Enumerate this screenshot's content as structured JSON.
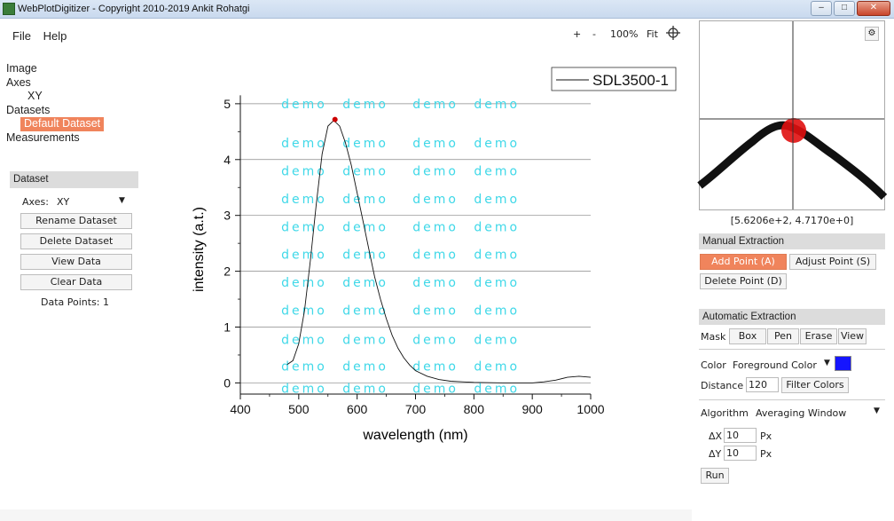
{
  "window": {
    "title": "WebPlotDigitizer - Copyright 2010-2019 Ankit Rohatgi",
    "min_label": "–",
    "max_label": "□",
    "close_label": "✕"
  },
  "menu": {
    "file": "File",
    "help": "Help"
  },
  "tree": {
    "image": "Image",
    "axes": "Axes",
    "axes_xy": "XY",
    "datasets": "Datasets",
    "default_dataset": "Default Dataset",
    "measurements": "Measurements"
  },
  "dataset_panel": {
    "header": "Dataset",
    "axes_label": "Axes:",
    "axes_value": "XY",
    "rename": "Rename Dataset",
    "delete": "Delete Dataset",
    "view": "View Data",
    "clear": "Clear Data",
    "data_points": "Data Points: 1"
  },
  "view_toolbar": {
    "zoom_in": "+",
    "zoom_out": "-",
    "zoom_level": "100%",
    "fit": "Fit",
    "crosshair_icon": "crosshair-icon"
  },
  "magnifier": {
    "coords": "[5.6206e+2, 4.7170e+0]",
    "settings_icon": "gear-icon"
  },
  "manual_extraction": {
    "header": "Manual Extraction",
    "add_point": "Add Point (A)",
    "adjust_point": "Adjust Point (S)",
    "delete_point": "Delete Point (D)"
  },
  "automatic_extraction": {
    "header": "Automatic Extraction",
    "mask_label": "Mask",
    "box": "Box",
    "pen": "Pen",
    "erase": "Erase",
    "view": "View",
    "color_label": "Color",
    "color_mode": "Foreground Color",
    "color_value": "#1515ff",
    "distance_label": "Distance",
    "distance_value": "120",
    "filter_colors": "Filter Colors",
    "algorithm_label": "Algorithm",
    "algorithm_value": "Averaging Window",
    "dx_label": "ΔX",
    "dx_value": "10",
    "dx_unit": "Px",
    "dy_label": "ΔY",
    "dy_value": "10",
    "dy_unit": "Px",
    "run": "Run"
  },
  "chart_data": {
    "type": "line",
    "xlabel": "wavelength (nm)",
    "ylabel": "intensity (a.t.)",
    "xlim": [
      400,
      1000
    ],
    "ylim": [
      -0.2,
      5.3
    ],
    "x_ticks": [
      "400",
      "500",
      "600",
      "700",
      "800",
      "900",
      "1000"
    ],
    "y_ticks": [
      "0",
      "1",
      "2",
      "3",
      "4",
      "5"
    ],
    "grid": "horizontal",
    "legend": "top-right",
    "watermark": "demo",
    "series": [
      {
        "name": "SDL3500-1",
        "x": [
          480,
          490,
          500,
          510,
          520,
          530,
          540,
          550,
          560,
          570,
          580,
          590,
          600,
          610,
          620,
          630,
          640,
          650,
          660,
          670,
          680,
          690,
          700,
          720,
          740,
          760,
          780,
          800,
          850,
          900,
          920,
          940,
          960,
          980,
          1000
        ],
        "y": [
          0.33,
          0.4,
          0.7,
          1.3,
          2.2,
          3.2,
          4.1,
          4.6,
          4.7,
          4.6,
          4.3,
          3.9,
          3.4,
          2.9,
          2.4,
          1.9,
          1.5,
          1.15,
          0.85,
          0.62,
          0.45,
          0.32,
          0.22,
          0.12,
          0.06,
          0.03,
          0.02,
          0.01,
          0.0,
          0.0,
          0.02,
          0.05,
          0.1,
          0.12,
          0.1
        ]
      }
    ],
    "digitized_point": {
      "x": 562.06,
      "y": 4.717
    }
  }
}
